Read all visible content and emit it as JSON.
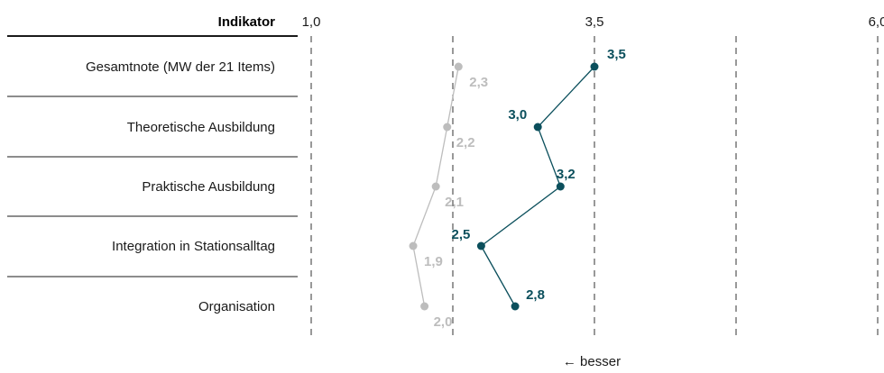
{
  "header": {
    "indicator_label": "Indikator"
  },
  "footer": {
    "direction_note": "← besser"
  },
  "colors": {
    "series_main": "#0b4f5c",
    "series_ref": "#bdbdbd",
    "grid": "#555555",
    "text": "#1a1a1a"
  },
  "chart_data": {
    "type": "line",
    "orientation": "horizontal",
    "categories": [
      "Gesamtnote (MW der 21 Items)",
      "Theoretische Ausbildung",
      "Praktische Ausbildung",
      "Integration in Stationsalltag",
      "Organisation"
    ],
    "series": [
      {
        "values": [
          3.5,
          3.0,
          3.2,
          2.5,
          2.8
        ],
        "labels": [
          "3,5",
          "3,0",
          "3,2",
          "2,5",
          "2,8"
        ]
      },
      {
        "values": [
          2.3,
          2.2,
          2.1,
          1.9,
          2.0
        ],
        "labels": [
          "2,3",
          "2,2",
          "2,1",
          "1,9",
          "2,0"
        ]
      }
    ],
    "xlim": [
      1.0,
      6.0
    ],
    "xticks": [
      {
        "value": 1.0,
        "label": "1,0"
      },
      {
        "value": 3.5,
        "label": "3,5"
      },
      {
        "value": 6.0,
        "label": "6,0"
      }
    ],
    "gridlines": [
      1.0,
      2.25,
      3.5,
      4.75,
      6.0
    ],
    "grid": true,
    "legend": false
  }
}
